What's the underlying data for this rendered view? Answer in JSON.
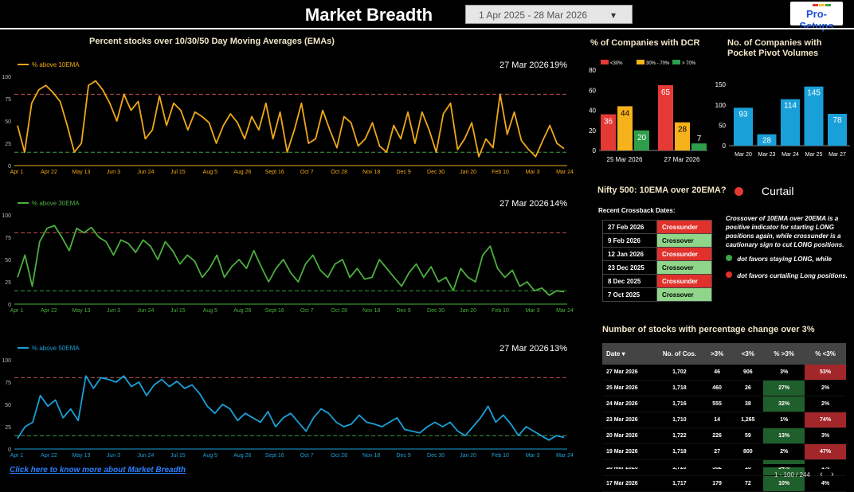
{
  "header": {
    "title": "Market Breadth",
    "date_range": "1 Apr 2025 - 28 Mar 2026",
    "date_caret": "▾",
    "logo_text": "Pro-Setups",
    "logo_colors": [
      "#e53935",
      "#fbc02d",
      "#43a047"
    ]
  },
  "ema_section": {
    "title": "Percent stocks over 10/30/50 Day Moving Averages (EMAs)",
    "x_ticks": [
      "Apr 1",
      "Apr 22",
      "May 13",
      "Jun 3",
      "Jun 24",
      "Jul 15",
      "Aug 5",
      "Aug 26",
      "Sept 16",
      "Oct 7",
      "Oct 28",
      "Nov 18",
      "Dec 9",
      "Dec 30",
      "Jan 20",
      "Feb 10",
      "Mar 3",
      "Mar 24"
    ],
    "y_ticks": [
      0,
      25,
      50,
      75,
      100
    ],
    "upper_threshold": 80,
    "lower_threshold": 15
  },
  "chart_data": [
    {
      "type": "line",
      "title": "% above 10EMA",
      "color": "#f0a818",
      "latest_date": "27 Mar 2026",
      "latest_value": "19%",
      "ylim": [
        0,
        100
      ],
      "values": [
        45,
        15,
        70,
        85,
        90,
        82,
        72,
        45,
        15,
        25,
        90,
        95,
        85,
        70,
        50,
        80,
        62,
        72,
        30,
        40,
        78,
        45,
        70,
        62,
        40,
        60,
        55,
        48,
        25,
        45,
        58,
        48,
        30,
        55,
        40,
        70,
        30,
        60,
        15,
        40,
        70,
        25,
        30,
        62,
        40,
        20,
        55,
        48,
        22,
        30,
        48,
        22,
        15,
        45,
        30,
        60,
        25,
        60,
        40,
        15,
        58,
        70,
        18,
        30,
        48,
        10,
        30,
        20,
        80,
        35,
        60,
        28,
        18,
        10,
        28,
        45,
        25,
        19
      ]
    },
    {
      "type": "line",
      "title": "% above 30EMA",
      "color": "#4caf3e",
      "latest_date": "27 Mar 2026",
      "latest_value": "14%",
      "ylim": [
        0,
        100
      ],
      "values": [
        30,
        55,
        20,
        70,
        85,
        88,
        75,
        60,
        85,
        80,
        86,
        75,
        70,
        55,
        72,
        68,
        58,
        72,
        65,
        50,
        70,
        60,
        45,
        55,
        48,
        30,
        40,
        55,
        30,
        42,
        50,
        40,
        60,
        42,
        25,
        40,
        50,
        35,
        25,
        45,
        55,
        38,
        30,
        45,
        50,
        30,
        40,
        28,
        30,
        50,
        40,
        30,
        20,
        35,
        45,
        30,
        42,
        25,
        30,
        15,
        40,
        30,
        25,
        55,
        65,
        40,
        30,
        38,
        20,
        25,
        15,
        18,
        10,
        15,
        14
      ]
    },
    {
      "type": "line",
      "title": "% above 50EMA",
      "color": "#1aa0d8",
      "latest_date": "27 Mar 2026",
      "latest_value": "13%",
      "ylim": [
        0,
        100
      ],
      "values": [
        12,
        25,
        30,
        60,
        48,
        55,
        35,
        45,
        32,
        82,
        68,
        80,
        78,
        75,
        82,
        70,
        75,
        60,
        72,
        78,
        70,
        76,
        68,
        72,
        62,
        48,
        40,
        50,
        45,
        32,
        40,
        35,
        30,
        42,
        25,
        35,
        40,
        30,
        20,
        35,
        45,
        40,
        30,
        25,
        28,
        38,
        30,
        28,
        25,
        30,
        35,
        22,
        20,
        18,
        25,
        30,
        25,
        30,
        20,
        15,
        25,
        35,
        48,
        30,
        38,
        28,
        15,
        25,
        20,
        15,
        10,
        15,
        13
      ]
    },
    {
      "type": "bar",
      "title": "% of Companies with DCR",
      "categories": [
        "25 Mar 2026",
        "27 Mar 2026"
      ],
      "series": [
        {
          "name": "<30%",
          "color": "#e53935",
          "values": [
            36,
            65
          ]
        },
        {
          "name": "30% - 70%",
          "color": "#f6b21b",
          "values": [
            44,
            28
          ]
        },
        {
          "name": "> 70%",
          "color": "#2e9e4b",
          "values": [
            20,
            7
          ]
        }
      ],
      "y_ticks": [
        0,
        20,
        40,
        60,
        80
      ],
      "ylim": [
        0,
        80
      ]
    },
    {
      "type": "bar",
      "title": "No. of Companies with Pocket Pivot Volumes",
      "categories": [
        "Mar 20",
        "Mar 23",
        "Mar 24",
        "Mar 25",
        "Mar 27"
      ],
      "values": [
        93,
        28,
        114,
        145,
        78
      ],
      "color": "#1aa0d8",
      "y_ticks": [
        0,
        50,
        100,
        150
      ],
      "ylim": [
        0,
        160
      ]
    }
  ],
  "crossover": {
    "title": "Nifty 500: 10EMA over 20EMA?",
    "status": "Curtail",
    "status_color": "#e53935",
    "recent_label": "Recent Crossback Dates:",
    "rows": [
      {
        "date": "27 Feb 2026",
        "signal": "Crossunder",
        "kind": "under"
      },
      {
        "date": "9 Feb 2026",
        "signal": "Crossover",
        "kind": "over"
      },
      {
        "date": "12 Jan 2026",
        "signal": "Crossunder",
        "kind": "under"
      },
      {
        "date": "23 Dec 2025",
        "signal": "Crossover",
        "kind": "over"
      },
      {
        "date": "8 Dec 2025",
        "signal": "Crossunder",
        "kind": "under"
      },
      {
        "date": "7 Oct 2025",
        "signal": "Crossover",
        "kind": "over"
      }
    ],
    "note": "Crossover of 10EMA over 20EMA is a positive indicator for starting LONG positions again, while crossunder is a cautionary sign to cut LONG positions.",
    "legend_green": "dot favors staying LONG, while",
    "legend_red": "dot favors curtailing Long positions."
  },
  "stocks_table": {
    "title": "Number of stocks with percentage change over 3%",
    "headers": [
      "Date ▾",
      "No. of Cos.",
      ">3%",
      "<3%",
      "% >3%",
      "% <3%"
    ],
    "rows": [
      [
        "27 Mar 2026",
        "1,702",
        "46",
        "906",
        "3%",
        "53%"
      ],
      [
        "25 Mar 2026",
        "1,718",
        "460",
        "26",
        "27%",
        "2%"
      ],
      [
        "24 Mar 2026",
        "1,716",
        "555",
        "38",
        "32%",
        "2%"
      ],
      [
        "23 Mar 2026",
        "1,710",
        "14",
        "1,265",
        "1%",
        "74%"
      ],
      [
        "20 Mar 2026",
        "1,722",
        "226",
        "59",
        "13%",
        "3%"
      ],
      [
        "19 Mar 2026",
        "1,718",
        "27",
        "800",
        "2%",
        "47%"
      ],
      [
        "18 Mar 2026",
        "1,720",
        "582",
        "16",
        "34%",
        "1%"
      ],
      [
        "17 Mar 2026",
        "1,717",
        "179",
        "72",
        "10%",
        "4%"
      ]
    ],
    "highlights": [
      [
        "",
        "",
        "",
        "",
        "",
        "red"
      ],
      [
        "",
        "",
        "",
        "",
        "green",
        ""
      ],
      [
        "",
        "",
        "",
        "",
        "green",
        ""
      ],
      [
        "",
        "",
        "",
        "",
        "",
        "red"
      ],
      [
        "",
        "",
        "",
        "",
        "green",
        ""
      ],
      [
        "",
        "",
        "",
        "",
        "",
        "red"
      ],
      [
        "",
        "",
        "",
        "",
        "green",
        ""
      ],
      [
        "",
        "",
        "",
        "",
        "green",
        ""
      ]
    ],
    "pager": "1 - 100 / 244",
    "prev": "‹",
    "next": "›"
  },
  "footer": {
    "link": "Click here to know more about Market Breadth"
  }
}
